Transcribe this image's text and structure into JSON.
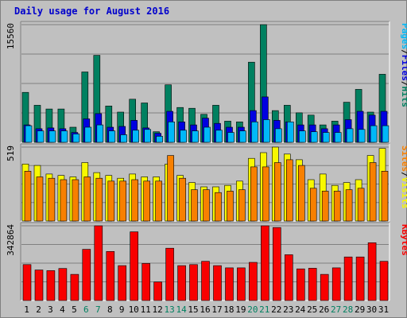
{
  "colors": {
    "background": "#c0c0c0",
    "title": "#0000cc",
    "pages": "#00b8f8",
    "files": "#0000e0",
    "hits": "#008060",
    "sites": "#f88000",
    "visits": "#f8f800",
    "kbytes": "#f80000",
    "weekend_tick": "#008060",
    "weekday_tick": "#000000"
  },
  "chart_data": {
    "type": "bar",
    "title": "Daily usage for August 2016",
    "categories": [
      "1",
      "2",
      "3",
      "4",
      "5",
      "6",
      "7",
      "8",
      "9",
      "10",
      "11",
      "12",
      "13",
      "14",
      "15",
      "16",
      "17",
      "18",
      "19",
      "20",
      "21",
      "22",
      "23",
      "24",
      "25",
      "26",
      "27",
      "28",
      "29",
      "30",
      "31"
    ],
    "weekend_days": [
      "6",
      "7",
      "13",
      "14",
      "20",
      "21",
      "27",
      "28"
    ],
    "panels": [
      {
        "name": "hits-files-pages",
        "ymax_label": "15560",
        "ylim": [
          0,
          15560
        ],
        "side_labels": [
          {
            "text": "Pages",
            "color": "#00b8f8"
          },
          {
            "text": "/",
            "color": "#000000"
          },
          {
            "text": "Files",
            "color": "#0000e0"
          },
          {
            "text": "/",
            "color": "#000000"
          },
          {
            "text": "Hits",
            "color": "#008060"
          }
        ],
        "series": [
          {
            "name": "Hits",
            "color": "#008060",
            "values": [
              6600,
              4900,
              4400,
              4400,
              2000,
              9300,
              11500,
              4800,
              4000,
              5700,
              5200,
              1400,
              7600,
              4600,
              4500,
              3700,
              4900,
              2800,
              2700,
              10600,
              15560,
              4200,
              4900,
              3900,
              3600,
              2300,
              2800,
              5300,
              7000,
              4000,
              9000
            ]
          },
          {
            "name": "Files",
            "color": "#0000e0",
            "values": [
              2300,
              1800,
              1900,
              1800,
              1300,
              3100,
              3800,
              2000,
              2100,
              2900,
              1900,
              1200,
              4100,
              2700,
              2300,
              3200,
              2500,
              2000,
              2000,
              4200,
              6000,
              2900,
              2700,
              2300,
              2300,
              1800,
              2300,
              3000,
              4100,
              3600,
              4100
            ]
          },
          {
            "name": "Pages",
            "color": "#00b8f8",
            "values": [
              2200,
              1500,
              1500,
              1500,
              1100,
              2000,
              2300,
              1500,
              1000,
              1600,
              1700,
              800,
              2700,
              1600,
              1500,
              2000,
              1600,
              1300,
              1500,
              2700,
              3000,
              1800,
              2700,
              1500,
              1400,
              1300,
              1300,
              1800,
              1700,
              2200,
              2200
            ]
          }
        ]
      },
      {
        "name": "visits-sites",
        "ymax_label": "519",
        "ylim": [
          0,
          519
        ],
        "side_labels": [
          {
            "text": "Sites",
            "color": "#f88000"
          },
          {
            "text": "/",
            "color": "#000000"
          },
          {
            "text": "Visits",
            "color": "#f8f800"
          }
        ],
        "series": [
          {
            "name": "Visits",
            "color": "#f8f800",
            "values": [
              400,
              390,
              330,
              320,
              310,
              410,
              340,
              320,
              300,
              330,
              310,
              310,
              400,
              320,
              270,
              240,
              240,
              250,
              280,
              440,
              480,
              519,
              470,
              430,
              290,
              330,
              250,
              270,
              290,
              460,
              510
            ]
          },
          {
            "name": "Sites",
            "color": "#f88000",
            "values": [
              350,
              310,
              300,
              290,
              290,
              310,
              300,
              280,
              280,
              290,
              280,
              280,
              460,
              300,
              220,
              220,
              200,
              210,
              220,
              380,
              380,
              410,
              430,
              390,
              230,
              210,
              210,
              220,
              230,
              410,
              350
            ]
          }
        ]
      },
      {
        "name": "kbytes",
        "ymax_label": "342864",
        "ylim": [
          0,
          342864
        ],
        "side_labels": [
          {
            "text": "KBytes",
            "color": "#f80000"
          }
        ],
        "series": [
          {
            "name": "KBytes",
            "color": "#f80000",
            "values": [
              165000,
              140000,
              137000,
              147000,
              120000,
              235000,
              342864,
              225000,
              160000,
              315000,
              170000,
              85000,
              240000,
              160000,
              165000,
              180000,
              160000,
              150000,
              150000,
              175000,
              342864,
              335000,
              210000,
              145000,
              148000,
              120000,
              150000,
              200000,
              200000,
              265000,
              180000
            ]
          }
        ]
      }
    ]
  }
}
